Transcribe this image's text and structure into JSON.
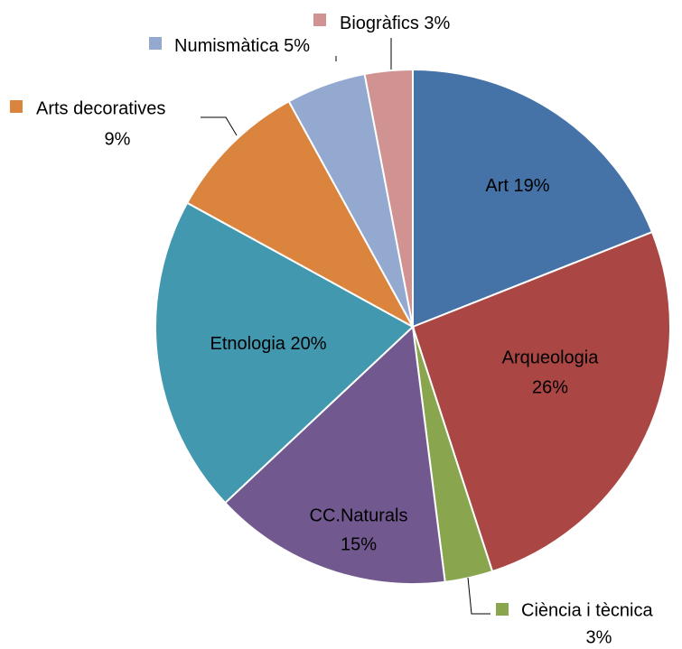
{
  "chart_data": {
    "type": "pie",
    "categories": [
      "Art",
      "Arqueologia",
      "Ciència i tècnica",
      "CC.Naturals",
      "Etnologia",
      "Arts decoratives",
      "Numismàtica",
      "Biogràfics"
    ],
    "values": [
      19,
      26,
      3,
      15,
      20,
      9,
      5,
      3
    ],
    "value_labels": [
      "19%",
      "26%",
      "3%",
      "15%",
      "20%",
      "9%",
      "5%",
      "3%"
    ],
    "colors": [
      "#4572a7",
      "#aa4643",
      "#89a54e",
      "#71588f",
      "#4198af",
      "#db843d",
      "#93a9cf",
      "#d09392"
    ]
  }
}
